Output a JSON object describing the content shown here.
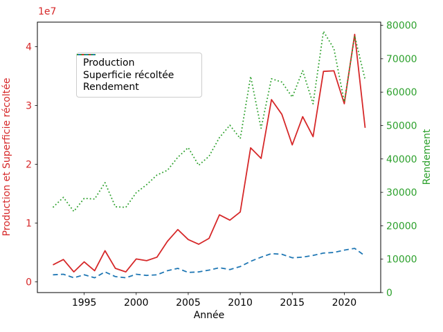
{
  "chart_data": {
    "type": "line",
    "x_axis": {
      "label": "Année",
      "ticks": [
        1995,
        2000,
        2005,
        2010,
        2015,
        2020
      ],
      "tick_labels": [
        "1995",
        "2000",
        "2005",
        "2010",
        "2015",
        "2020"
      ],
      "lim": [
        1990.5,
        2023.5
      ]
    },
    "left_axis": {
      "label": "Production et Superficie récoltée",
      "color": "#d62728",
      "offset_text": "1e7",
      "ticks": [
        0,
        10000000,
        20000000,
        30000000,
        40000000
      ],
      "tick_labels": [
        "0",
        "1",
        "2",
        "3",
        "4"
      ],
      "lim": [
        -1820000,
        44180000
      ]
    },
    "right_axis": {
      "label": "Rendement",
      "color": "#2ca02c",
      "ticks": [
        0,
        10000,
        20000,
        30000,
        40000,
        50000,
        60000,
        70000,
        80000
      ],
      "tick_labels": [
        "0",
        "10000",
        "20000",
        "30000",
        "40000",
        "50000",
        "60000",
        "70000",
        "80000"
      ],
      "lim": [
        0,
        80950
      ]
    },
    "x": [
      1992,
      1993,
      1994,
      1995,
      1996,
      1997,
      1998,
      1999,
      2000,
      2001,
      2002,
      2003,
      2004,
      2005,
      2006,
      2007,
      2008,
      2009,
      2010,
      2011,
      2012,
      2013,
      2014,
      2015,
      2016,
      2017,
      2018,
      2019,
      2020,
      2021,
      2022
    ],
    "series": [
      {
        "name": "Production",
        "axis": "left",
        "color": "#d62728",
        "style": "solid",
        "values": [
          2900000,
          3800000,
          1700000,
          3400000,
          1900000,
          5300000,
          2300000,
          1700000,
          3900000,
          3600000,
          4200000,
          6900000,
          8900000,
          7200000,
          6400000,
          7400000,
          11400000,
          10500000,
          11900000,
          22800000,
          21000000,
          31000000,
          28500000,
          23300000,
          28100000,
          24700000,
          35800000,
          35900000,
          30300000,
          42100000,
          26200000
        ]
      },
      {
        "name": "Superficie récoltée",
        "axis": "left",
        "color": "#1f77b4",
        "style": "dashed",
        "values": [
          1200000,
          1300000,
          700000,
          1200000,
          700000,
          1700000,
          900000,
          700000,
          1300000,
          1100000,
          1200000,
          1900000,
          2300000,
          1600000,
          1700000,
          2000000,
          2400000,
          2100000,
          2600000,
          3500000,
          4200000,
          4800000,
          4700000,
          4100000,
          4200000,
          4500000,
          4900000,
          5000000,
          5400000,
          5700000,
          4400000
        ]
      },
      {
        "name": "Rendement",
        "axis": "right",
        "color": "#2ca02c",
        "style": "dotted",
        "values": [
          25500,
          28500,
          24300,
          28200,
          28000,
          32900,
          25700,
          25500,
          29900,
          32300,
          35200,
          36600,
          40500,
          43400,
          38100,
          40800,
          46400,
          50100,
          46100,
          64700,
          49200,
          64000,
          63000,
          58500,
          66400,
          56500,
          78200,
          73000,
          57100,
          76800,
          63700
        ]
      }
    ],
    "legend_position": "upper-left",
    "grid": false
  }
}
